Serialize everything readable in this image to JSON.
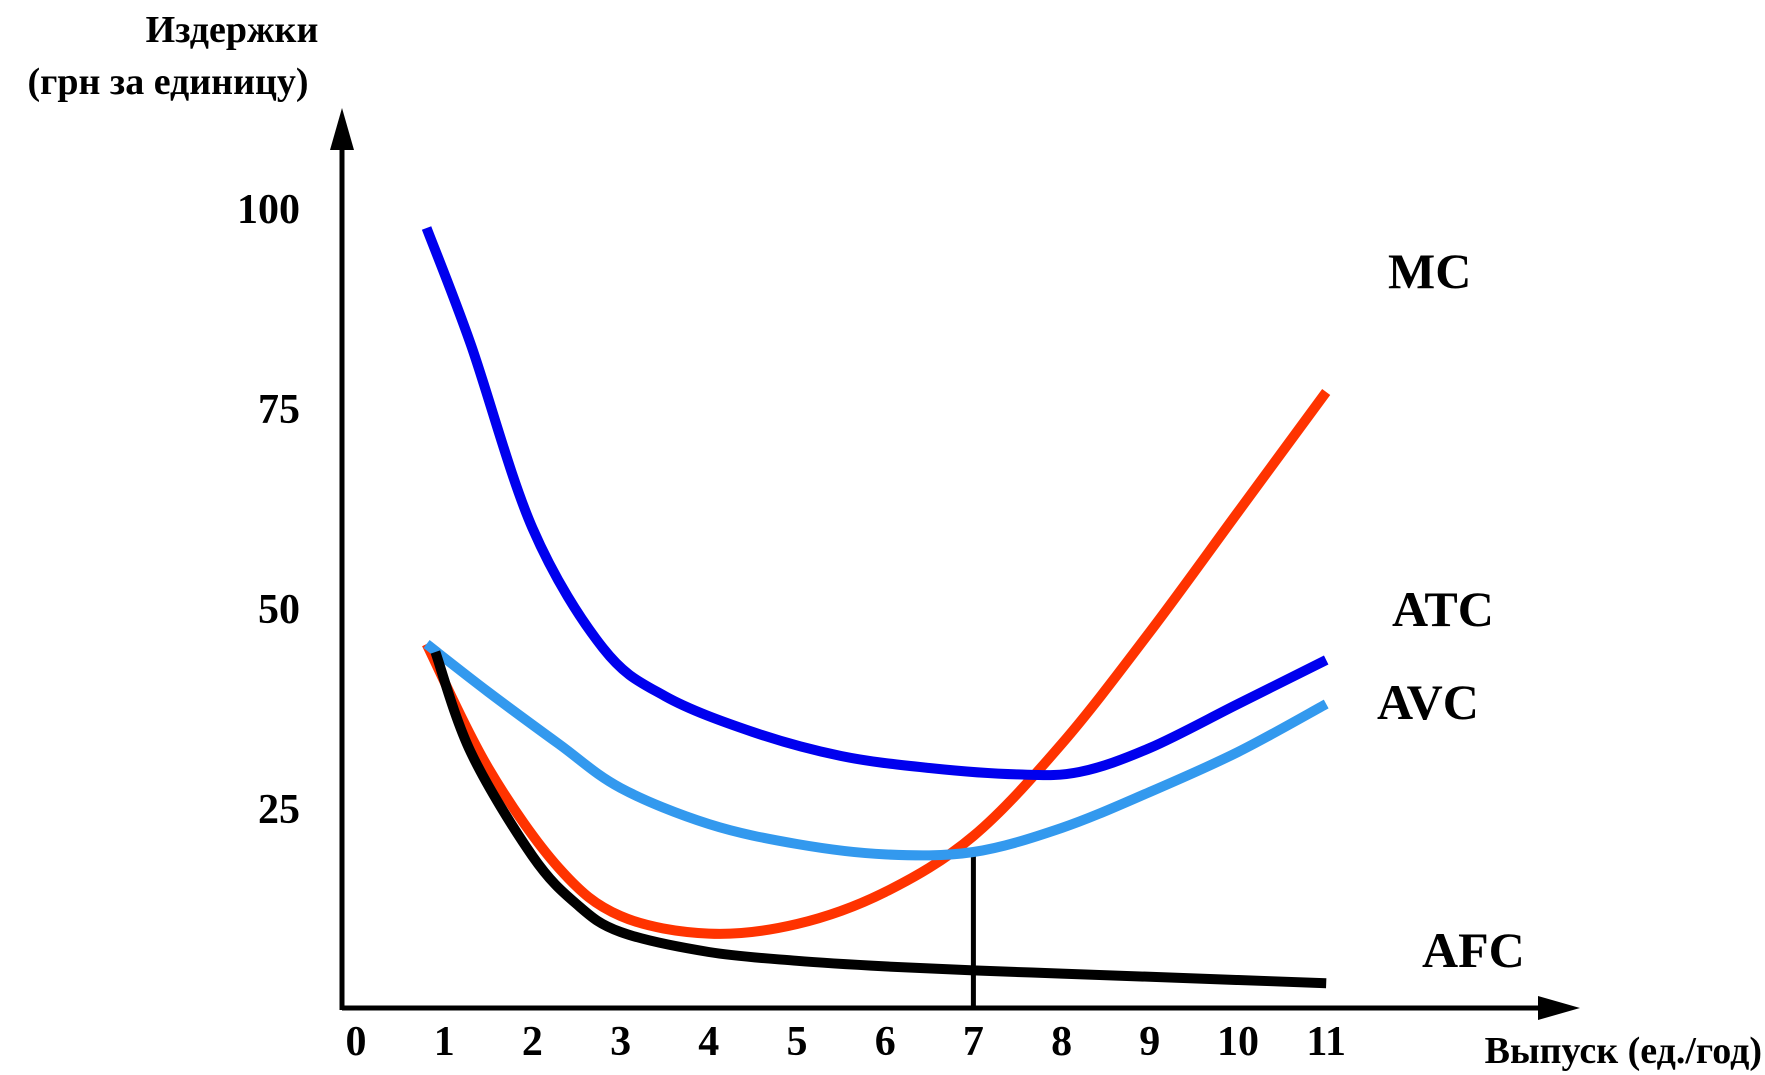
{
  "chart_data": {
    "type": "line",
    "ylabel_lines": [
      "Издержки",
      "(грн за единицу)"
    ],
    "xlabel": "Выпуск (ед./год)",
    "xlim": [
      0,
      11
    ],
    "ylim": [
      0,
      100
    ],
    "x_ticks": [
      "0",
      "1",
      "2",
      "3",
      "4",
      "5",
      "6",
      "7",
      "8",
      "9",
      "10",
      "11"
    ],
    "y_ticks": [
      "100",
      "75",
      "50",
      "25"
    ],
    "highlight_x": 7,
    "highlight_color": "#e8176b",
    "drop_line": {
      "x": 7,
      "y": 20
    },
    "series": [
      {
        "name": "ATC",
        "color": "#0000ee",
        "width": 10,
        "points": [
          [
            0.8,
            97.5
          ],
          [
            1.3,
            83
          ],
          [
            2,
            60
          ],
          [
            2.8,
            45
          ],
          [
            3.5,
            39
          ],
          [
            4.5,
            34.5
          ],
          [
            5.5,
            31.5
          ],
          [
            6.5,
            30
          ],
          [
            7.5,
            29.2
          ],
          [
            8.2,
            29.5
          ],
          [
            9,
            32.5
          ],
          [
            10,
            38
          ],
          [
            11,
            43.5
          ]
        ]
      },
      {
        "name": "AVC",
        "color": "#3399ee",
        "width": 10,
        "points": [
          [
            0.8,
            45.5
          ],
          [
            1.5,
            39.5
          ],
          [
            2.3,
            33
          ],
          [
            3,
            27.5
          ],
          [
            4,
            23
          ],
          [
            5,
            20.5
          ],
          [
            6,
            19.2
          ],
          [
            7,
            19.5
          ],
          [
            8,
            22.5
          ],
          [
            9,
            27
          ],
          [
            10,
            32
          ],
          [
            11,
            38
          ]
        ]
      },
      {
        "name": "MC",
        "color": "#ff3300",
        "width": 10,
        "points": [
          [
            0.8,
            45.5
          ],
          [
            1.5,
            30
          ],
          [
            2.3,
            17.5
          ],
          [
            3,
            11.5
          ],
          [
            4,
            9.3
          ],
          [
            5,
            10.5
          ],
          [
            6,
            14.5
          ],
          [
            7,
            21.5
          ],
          [
            8,
            33
          ],
          [
            9,
            47
          ],
          [
            10,
            62
          ],
          [
            11,
            77
          ]
        ]
      },
      {
        "name": "AFC",
        "color": "#000000",
        "width": 10,
        "points": [
          [
            0.9,
            44.5
          ],
          [
            1.3,
            32
          ],
          [
            2,
            19
          ],
          [
            2.5,
            13
          ],
          [
            3,
            9.5
          ],
          [
            4,
            7
          ],
          [
            5,
            5.9
          ],
          [
            6,
            5.2
          ],
          [
            7,
            4.7
          ],
          [
            8,
            4.3
          ],
          [
            9,
            3.9
          ],
          [
            10,
            3.5
          ],
          [
            11,
            3.1
          ]
        ]
      }
    ]
  }
}
